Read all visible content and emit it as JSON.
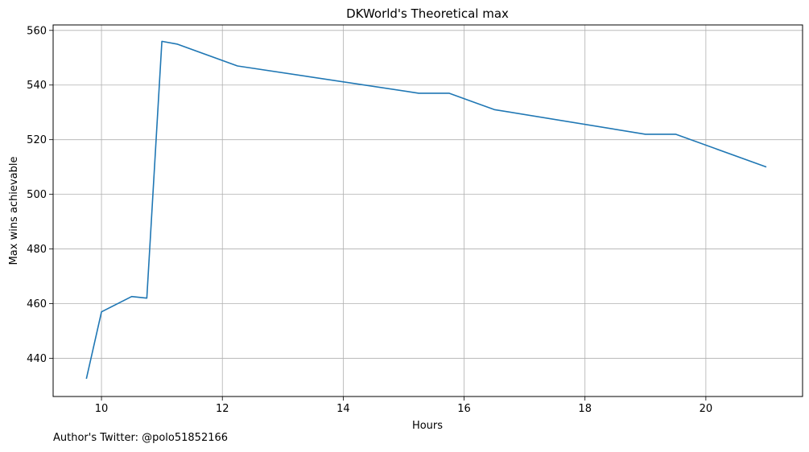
{
  "chart_data": {
    "type": "line",
    "title": "DKWorld's Theoretical max",
    "xlabel": "Hours",
    "ylabel": "Max wins achievable",
    "xlim": [
      9.2,
      21.6
    ],
    "ylim": [
      426,
      562
    ],
    "xticks": [
      10,
      12,
      14,
      16,
      18,
      20
    ],
    "yticks": [
      440,
      460,
      480,
      500,
      520,
      540,
      560
    ],
    "grid": true,
    "line_color": "#1f77b4",
    "series": [
      {
        "x": [
          9.75,
          10.0,
          10.5,
          10.75,
          11.0,
          11.25,
          12.25,
          15.25,
          15.75,
          16.5,
          19.0,
          19.5,
          21.0
        ],
        "values": [
          432.5,
          457,
          462.6,
          462,
          556,
          555,
          547,
          537,
          537,
          531,
          522,
          522,
          510
        ]
      }
    ]
  },
  "footer": {
    "note": "Author's Twitter: @polo51852166"
  }
}
